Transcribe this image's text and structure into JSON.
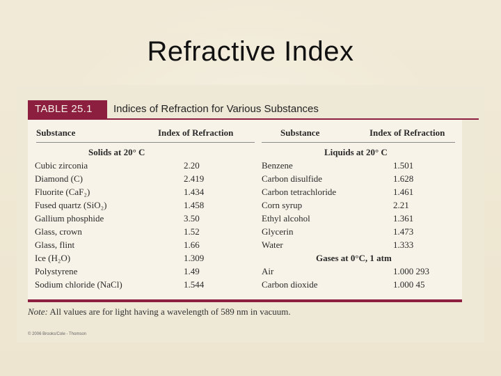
{
  "slide": {
    "title": "Refractive Index"
  },
  "table": {
    "label": "TABLE 25.1",
    "caption": "Indices of Refraction for Various Substances",
    "headers": {
      "substance_left": "Substance",
      "index_left": "Index of Refraction",
      "substance_right": "Substance",
      "index_right": "Index of Refraction"
    },
    "groups": {
      "solids": "Solids at 20° C",
      "liquids": "Liquids at 20° C",
      "gases": "Gases at 0°C, 1 atm"
    },
    "solids": [
      {
        "substance": "Cubic zirconia",
        "index": "2.20"
      },
      {
        "substance": "Diamond (C)",
        "index": "2.419"
      },
      {
        "substance": "Fluorite (CaF₂)",
        "index": "1.434"
      },
      {
        "substance": "Fused quartz (SiO₂)",
        "index": "1.458"
      },
      {
        "substance": "Gallium phosphide",
        "index": "3.50"
      },
      {
        "substance": "Glass, crown",
        "index": "1.52"
      },
      {
        "substance": "Glass, flint",
        "index": "1.66"
      },
      {
        "substance": "Ice (H₂O)",
        "index": "1.309"
      },
      {
        "substance": "Polystyrene",
        "index": "1.49"
      },
      {
        "substance": "Sodium chloride (NaCl)",
        "index": "1.544"
      }
    ],
    "liquids": [
      {
        "substance": "Benzene",
        "index": "1.501"
      },
      {
        "substance": "Carbon disulfide",
        "index": "1.628"
      },
      {
        "substance": "Carbon tetrachloride",
        "index": "1.461"
      },
      {
        "substance": "Corn syrup",
        "index": "2.21"
      },
      {
        "substance": "Ethyl alcohol",
        "index": "1.361"
      },
      {
        "substance": "Glycerin",
        "index": "1.473"
      },
      {
        "substance": "Water",
        "index": "1.333"
      }
    ],
    "gases": [
      {
        "substance": "Air",
        "index": "1.000 293"
      },
      {
        "substance": "Carbon dioxide",
        "index": "1.000 45"
      }
    ]
  },
  "footer": {
    "note_label": "Note:",
    "note_text": " All values are for light having a wavelength of 589 nm in vacuum.",
    "copyright": "© 2006 Brooks/Cole - Thomson"
  },
  "colors": {
    "accent": "#8c1f3f",
    "background": "#efe8d3",
    "panel": "#f7f3e8"
  }
}
